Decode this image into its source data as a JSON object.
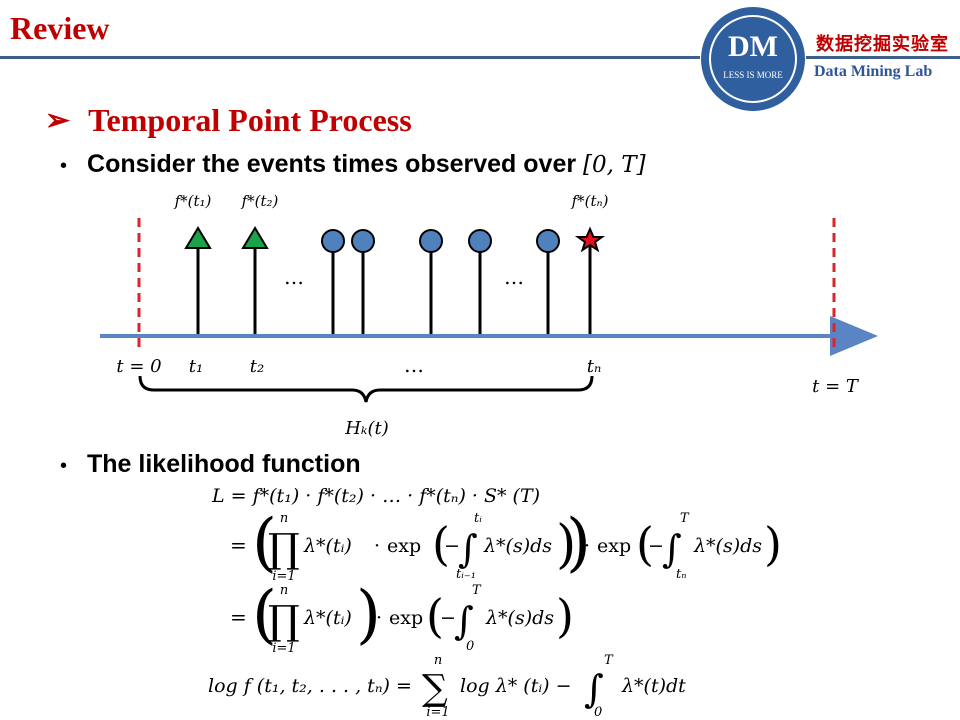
{
  "header": {
    "title": "Review",
    "logo_text": "DM",
    "logo_subtext": "LESS IS MORE",
    "lab_name_cn": "数据挖掘实验室",
    "lab_name_en": "Data Mining Lab"
  },
  "section": {
    "arrow": "➢",
    "title": "Temporal Point Process"
  },
  "bullets": [
    {
      "text": "Consider the events times observed over",
      "math": "[0, T]"
    },
    {
      "text": "The likelihood function"
    }
  ],
  "timeline": {
    "start_label": "t = 0",
    "end_label": "t = T",
    "t1_label": "t₁",
    "t2_label": "t₂",
    "tn_label": "tₙ",
    "ellipsis": "…",
    "f1_label": "f*(t₁)",
    "f2_label": "f*(t₂)",
    "fn_label": "f*(tₙ)",
    "history_label": "Hₖ(t)",
    "colors": {
      "axis": "#5b84c4",
      "dashed": "#d9262b",
      "triangle": "#1aa34a",
      "circle": "#4f81bd",
      "star": "#e8111b"
    }
  },
  "equations": {
    "line1": "L = f*(t₁) · f*(t₂) · … · f*(tₙ) · S* (T)",
    "line2_prefix": "=",
    "product_sym": "∏",
    "prod_upper": "n",
    "prod_lower": "i=1",
    "lambda_ti": "λ*(tᵢ)",
    "dot": "·",
    "exp": "exp",
    "minus": "−",
    "integral": "∫",
    "int1_upper": "tᵢ",
    "int1_lower": "tᵢ₋₁",
    "lambda_s_ds": "λ*(s)ds",
    "int2_upper": "T",
    "int2_lower": "tₙ",
    "int3_upper": "T",
    "int3_lower": "0",
    "log_lhs": "log f (t₁, t₂, . . . , tₙ) =",
    "sum_sym": "∑",
    "sum_upper": "n",
    "sum_lower": "i=1",
    "log_lambda": "log λ* (tᵢ) −",
    "lambda_t_dt": "λ*(t)dt"
  }
}
